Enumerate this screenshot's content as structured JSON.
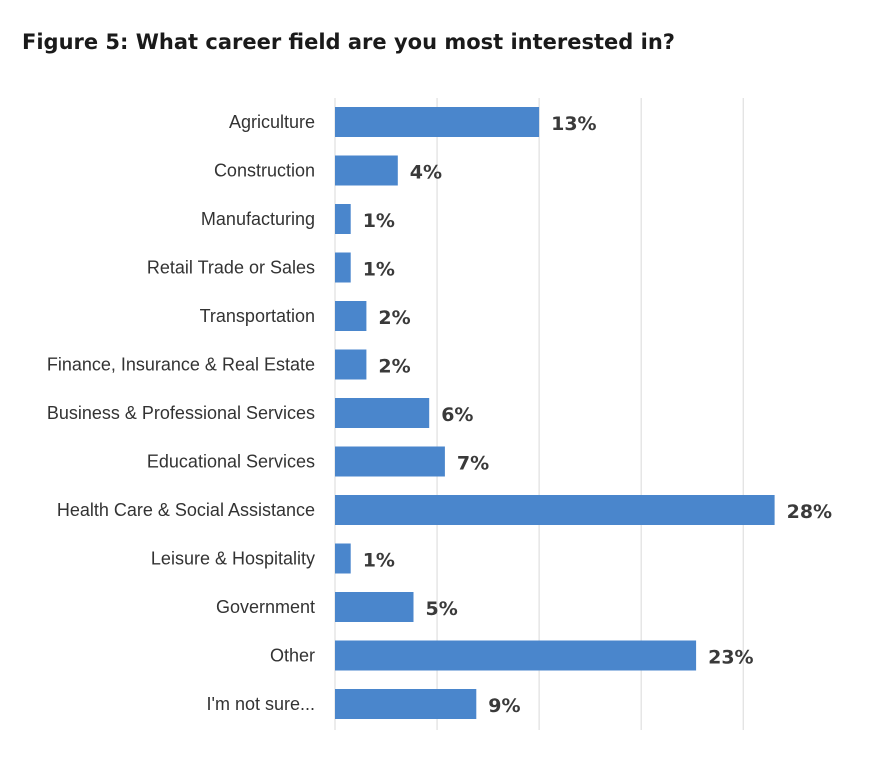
{
  "chart_data": {
    "type": "bar",
    "orientation": "horizontal",
    "title": "Figure 5: What career field are you most interested in?",
    "xlabel": "",
    "ylabel": "",
    "categories": [
      "Agriculture",
      "Construction",
      "Manufacturing",
      "Retail Trade or Sales",
      "Transportation",
      "Finance, Insurance & Real Estate",
      "Business & Professional Services",
      "Educational Services",
      "Health Care & Social Assistance",
      "Leisure & Hospitality",
      "Government",
      "Other",
      "I'm not sure..."
    ],
    "values": [
      13,
      4,
      1,
      1,
      2,
      2,
      6,
      7,
      28,
      1,
      5,
      23,
      9
    ],
    "value_labels": [
      "13%",
      "4%",
      "1%",
      "1%",
      "2%",
      "2%",
      "6%",
      "7%",
      "28%",
      "1%",
      "5%",
      "23%",
      "9%"
    ],
    "xlim": [
      0,
      30
    ],
    "grid": "vertical",
    "legend": "none",
    "bar_color": "#4a86cc"
  }
}
